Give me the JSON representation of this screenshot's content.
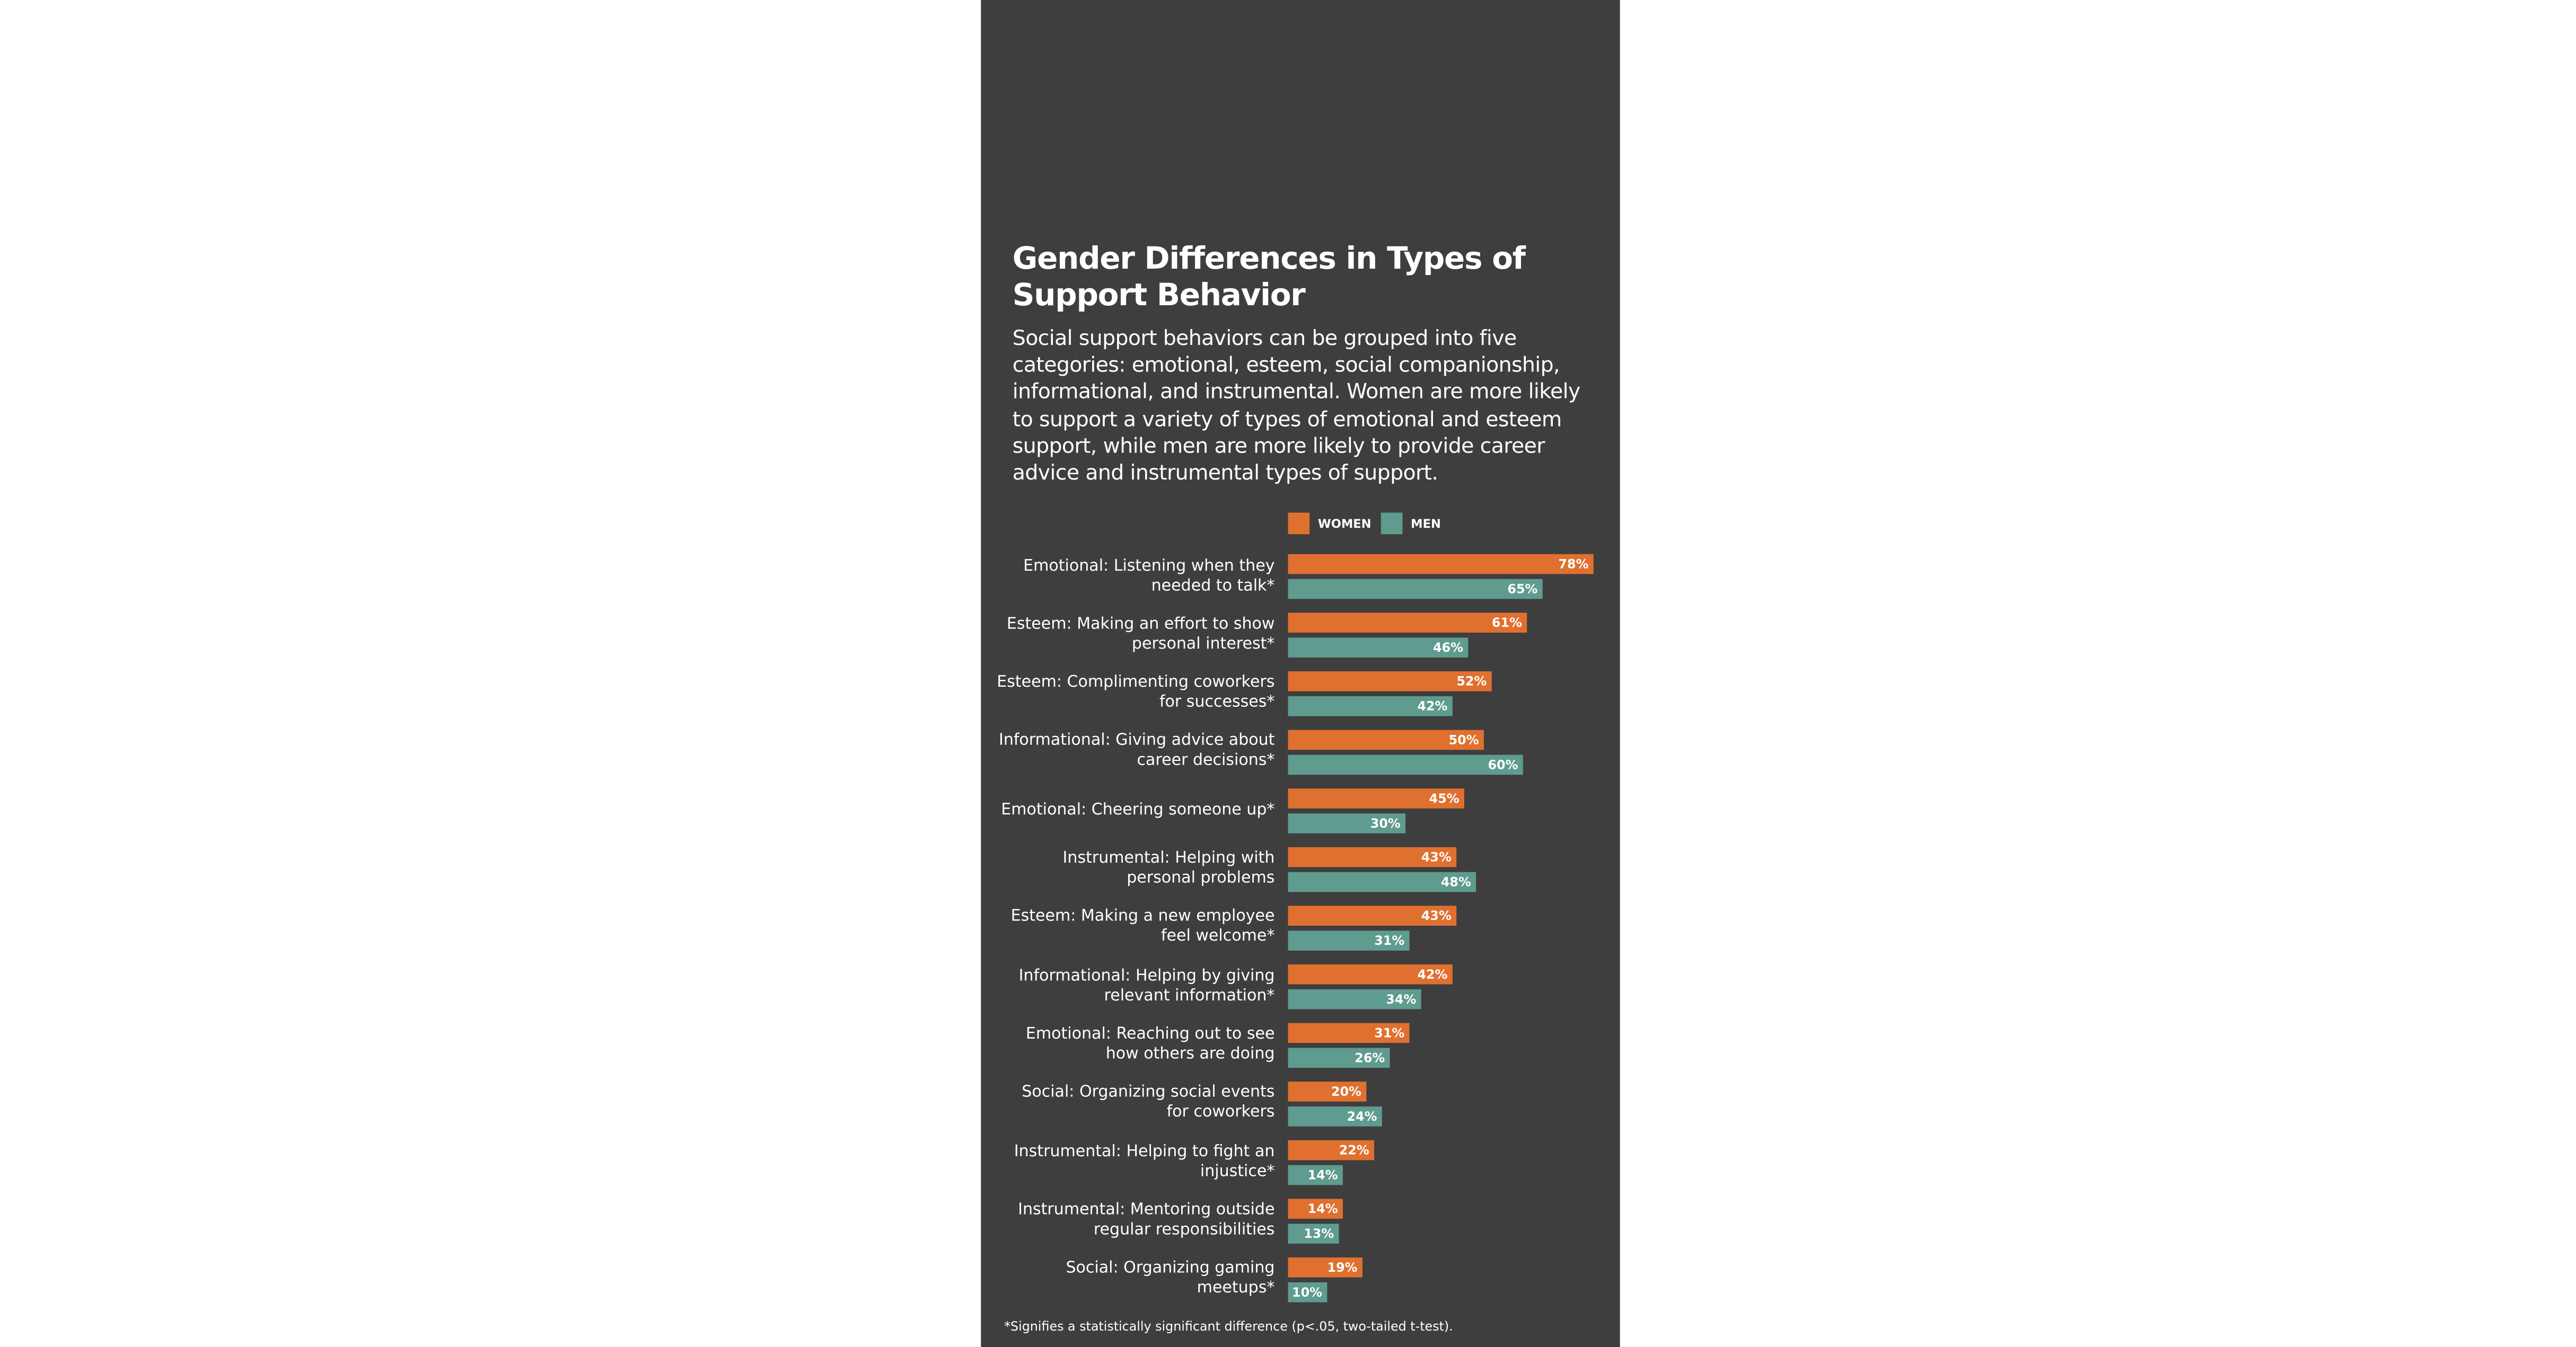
{
  "chart_data": {
    "type": "bar",
    "title": "Gender Differences in Types of Support Behavior",
    "subtitle": "Social support behaviors can be grouped into five categories: emotional, esteem, social companionship, informational, and instrumental. Women are more likely to support a variety of types of emotional and esteem support, while men are more likely to provide career advice and instrumental types of support.",
    "categories": [
      "Emotional: Listening when they needed to talk*",
      "Esteem: Making an effort to show personal interest*",
      "Esteem: Complimenting coworkers for successes*",
      "Informational: Giving advice about career decisions*",
      "Emotional: Cheering someone up*",
      "Instrumental: Helping with personal problems",
      "Esteem: Making a new employee feel welcome*",
      "Informational: Helping by giving relevant information*",
      "Emotional: Reaching out to see how others are doing",
      "Social: Organizing social events for coworkers",
      "Instrumental: Helping to fight an injustice*",
      "Instrumental: Mentoring outside regular responsibilities",
      "Social: Organizing gaming meetups*"
    ],
    "series": [
      {
        "name": "WOMEN",
        "color": "#e0702f",
        "values": [
          78,
          61,
          52,
          50,
          45,
          43,
          43,
          42,
          31,
          20,
          22,
          14,
          19
        ],
        "value_labels": [
          "78%",
          "61%",
          "52%",
          "50%",
          "45%",
          "43%",
          "43%",
          "42%",
          "31%",
          "20%",
          "22%",
          "14%",
          "19%"
        ]
      },
      {
        "name": "MEN",
        "color": "#5f9b8f",
        "values": [
          65,
          46,
          42,
          60,
          30,
          48,
          31,
          34,
          26,
          24,
          14,
          13,
          10
        ],
        "value_labels": [
          "65%",
          "46%",
          "42%",
          "60%",
          "30%",
          "48%",
          "31%",
          "34%",
          "26%",
          "24%",
          "14%",
          "13%",
          "10%"
        ]
      }
    ],
    "note": "*Signifies a statistically significant difference (p<.05, two-tailed t-test)."
  }
}
